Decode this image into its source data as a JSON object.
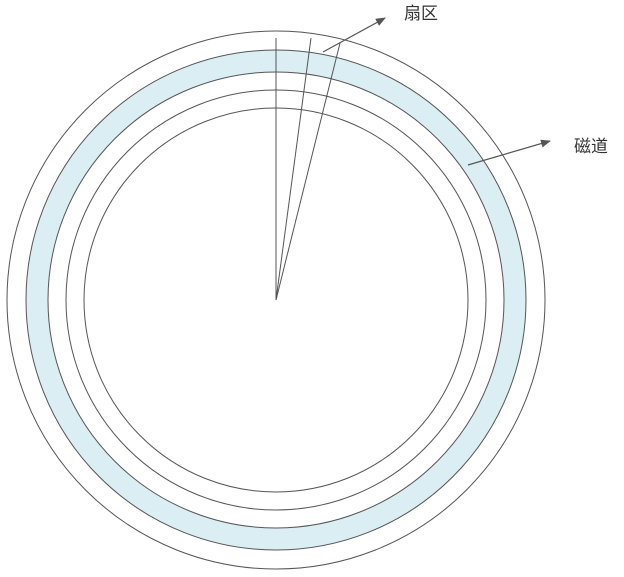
{
  "labels": {
    "sector": "扇区",
    "track": "磁道"
  },
  "colors": {
    "stroke": "#555555",
    "track_fill": "#daeef3",
    "background": "#ffffff",
    "arrow": "#555555"
  }
}
